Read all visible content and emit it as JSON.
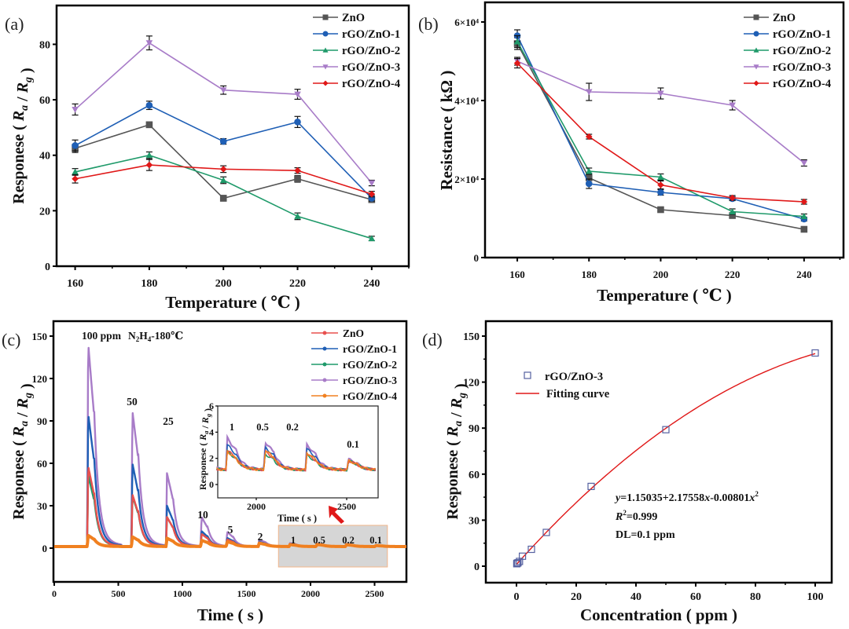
{
  "figure": {
    "panels": [
      "(a)",
      "(b)",
      "(c)",
      "(d)"
    ]
  },
  "chart_data": [
    {
      "id": "a",
      "type": "line",
      "panel_label": "(a)",
      "xlabel": "Temperature ( ℃ )",
      "ylabel": "Responese ( Ra / Rg )",
      "x": [
        160,
        180,
        200,
        220,
        240
      ],
      "xlim": [
        155,
        250
      ],
      "ylim": [
        0,
        94
      ],
      "xticks": [
        160,
        180,
        200,
        220,
        240
      ],
      "yticks": [
        0,
        20,
        40,
        60,
        80
      ],
      "legend_position": "top-right",
      "series": [
        {
          "name": "ZnO",
          "color": "#555555",
          "marker": "square",
          "values": [
            42.5,
            51,
            24.5,
            31.5,
            24
          ],
          "err": [
            1.5,
            1,
            1,
            1.2,
            1
          ]
        },
        {
          "name": "rGO/ZnO-1",
          "color": "#1f5fb5",
          "marker": "circle",
          "values": [
            43.5,
            58,
            45,
            52,
            24.5
          ],
          "err": [
            2,
            1.5,
            1,
            2,
            1
          ]
        },
        {
          "name": "rGO/ZnO-2",
          "color": "#1f9a6a",
          "marker": "triangle-up",
          "values": [
            34,
            40,
            31,
            18,
            10
          ],
          "err": [
            1.2,
            1.2,
            1.2,
            1.2,
            0.8
          ]
        },
        {
          "name": "rGO/ZnO-3",
          "color": "#a87cc8",
          "marker": "triangle-down",
          "values": [
            56.5,
            80.5,
            63.5,
            62,
            30
          ],
          "err": [
            2,
            2.5,
            1.5,
            1.8,
            1
          ]
        },
        {
          "name": "rGO/ZnO-4",
          "color": "#e01818",
          "marker": "diamond",
          "values": [
            31.5,
            36.5,
            35,
            34.5,
            26
          ],
          "err": [
            1.5,
            2,
            1.2,
            1,
            1
          ]
        }
      ]
    },
    {
      "id": "b",
      "type": "line",
      "panel_label": "(b)",
      "xlabel": "Temperature ( ℃ )",
      "ylabel": "Resistance ( kΩ )",
      "x": [
        160,
        180,
        200,
        220,
        240
      ],
      "xlim": [
        151,
        251
      ],
      "ylim": [
        0,
        65000
      ],
      "xticks": [
        160,
        180,
        200,
        220,
        240
      ],
      "yticks": [
        0,
        20000,
        40000,
        60000
      ],
      "ytick_labels": [
        "0",
        "2×10⁴",
        "4×10⁴",
        "6×10⁴"
      ],
      "legend_position": "top-right",
      "series": [
        {
          "name": "ZnO",
          "color": "#555555",
          "marker": "square",
          "values": [
            54500,
            20300,
            12200,
            10700,
            7200
          ],
          "err": [
            1500,
            1200,
            500,
            500,
            400
          ]
        },
        {
          "name": "rGO/ZnO-1",
          "color": "#1f5fb5",
          "marker": "circle",
          "values": [
            56500,
            18800,
            16600,
            15000,
            9800
          ],
          "err": [
            1500,
            1200,
            700,
            500,
            500
          ]
        },
        {
          "name": "rGO/ZnO-2",
          "color": "#1f9a6a",
          "marker": "triangle-up",
          "values": [
            55000,
            22000,
            20500,
            11700,
            10500
          ],
          "err": [
            1500,
            800,
            800,
            700,
            600
          ]
        },
        {
          "name": "rGO/ZnO-3",
          "color": "#a87cc8",
          "marker": "triangle-down",
          "values": [
            50000,
            42200,
            41800,
            38800,
            24100
          ],
          "err": [
            1000,
            2200,
            1400,
            1200,
            800
          ]
        },
        {
          "name": "rGO/ZnO-4",
          "color": "#e01818",
          "marker": "diamond",
          "values": [
            49500,
            30800,
            18500,
            15200,
            14200
          ],
          "err": [
            1200,
            600,
            1000,
            600,
            600
          ]
        }
      ]
    },
    {
      "id": "c",
      "type": "line",
      "panel_label": "(c)",
      "title": "N2H4-180℃",
      "xlabel": "Time ( s )",
      "ylabel": "Responese ( Ra / Rg )",
      "xlim": [
        0,
        2750
      ],
      "ylim": [
        -20,
        160
      ],
      "xticks": [
        0,
        500,
        1000,
        1500,
        2000,
        2500
      ],
      "yticks": [
        0,
        30,
        60,
        90,
        120,
        150
      ],
      "legend_position": "top-right",
      "pulses": [
        {
          "label": "100 ppm",
          "t": 265,
          "peaks": [
            58,
            95,
            52,
            145,
            9
          ]
        },
        {
          "label": "50",
          "t": 610,
          "peaks": [
            38,
            60,
            37,
            97,
            8
          ]
        },
        {
          "label": "25",
          "t": 880,
          "peaks": [
            22,
            30,
            22,
            53,
            7
          ]
        },
        {
          "label": "10",
          "t": 1150,
          "peaks": [
            10,
            12,
            10,
            22,
            5.5
          ]
        },
        {
          "label": "5",
          "t": 1350,
          "peaks": [
            6,
            7,
            6,
            11,
            4.5
          ]
        },
        {
          "label": "2",
          "t": 1600,
          "peaks": [
            4,
            4.5,
            4,
            6,
            3.5
          ]
        },
        {
          "label": "1",
          "t": 1840,
          "peaks": [
            2.6,
            3.0,
            2.5,
            3.5,
            2.5
          ]
        },
        {
          "label": "0.5",
          "t": 2050,
          "peaks": [
            2.5,
            2.8,
            2.3,
            3.2,
            2.6
          ]
        },
        {
          "label": "0.2",
          "t": 2280,
          "peaks": [
            2.3,
            2.7,
            2.2,
            3.0,
            2.4
          ]
        },
        {
          "label": "0.1",
          "t": 2510,
          "peaks": [
            1.8,
            1.8,
            1.8,
            1.9,
            1.8
          ]
        }
      ],
      "baseline": 1.1,
      "series": [
        {
          "name": "ZnO",
          "color": "#e8504f"
        },
        {
          "name": "rGO/ZnO-1",
          "color": "#1f5fb5"
        },
        {
          "name": "rGO/ZnO-2",
          "color": "#1f9a6a"
        },
        {
          "name": "rGO/ZnO-3",
          "color": "#a87cc8"
        },
        {
          "name": "rGO/ZnO-4",
          "color": "#f08020"
        }
      ],
      "inset": {
        "xlabel": "Time ( s )",
        "ylabel": "Responese ( Ra / Rg )",
        "xlim": [
          1780,
          2670
        ],
        "ylim": [
          -1,
          6
        ],
        "xticks": [
          2000,
          2500
        ],
        "yticks": [
          0,
          2,
          4,
          6
        ],
        "labels": [
          "1",
          "0.5",
          "0.2",
          "0.1"
        ]
      },
      "highlight_region": {
        "x": [
          1750,
          2600
        ],
        "labels": [
          "1",
          "0.5",
          "0.2",
          "0.1"
        ]
      }
    },
    {
      "id": "d",
      "type": "scatter",
      "panel_label": "(d)",
      "xlabel": "Concentration ( ppm )",
      "ylabel": "Responese ( Ra / Rg )",
      "xlim": [
        -10,
        110
      ],
      "ylim": [
        -12,
        158
      ],
      "xticks": [
        0,
        20,
        40,
        60,
        80,
        100
      ],
      "yticks": [
        0,
        30,
        60,
        90,
        120,
        150
      ],
      "legend_position": "top-left",
      "series": [
        {
          "name": "rGO/ZnO-3",
          "color": "#5560a0",
          "marker": "open-square",
          "x": [
            0.1,
            0.2,
            0.5,
            1,
            2,
            5,
            10,
            25,
            50,
            100
          ],
          "values": [
            1.6,
            1.9,
            2.2,
            3.1,
            6.5,
            11,
            22,
            52,
            89,
            139
          ]
        }
      ],
      "fit": {
        "name": "Fitting curve",
        "color": "#e01818",
        "a": 1.15035,
        "b": 2.17558,
        "c": -0.00801,
        "x_range": [
          0,
          100
        ]
      },
      "annotations": [
        "y=1.15035+2.17558x-0.00801x²",
        "R²=0.999",
        "DL=0.1 ppm"
      ]
    }
  ]
}
